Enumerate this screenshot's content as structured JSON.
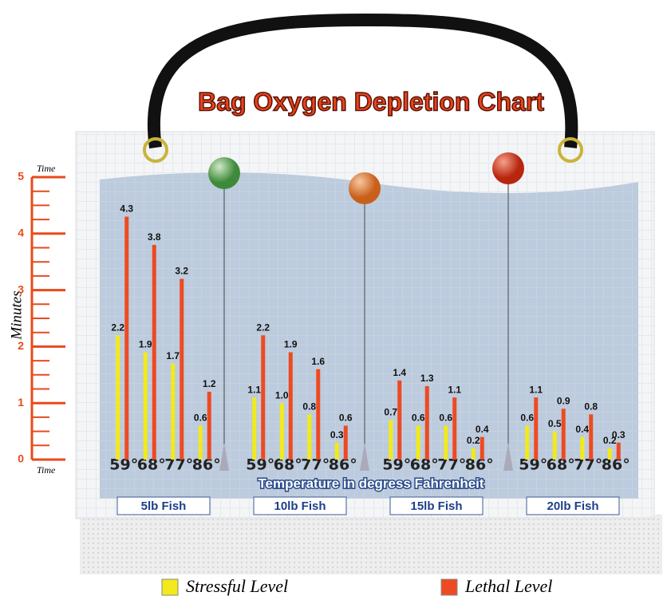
{
  "chart_data": {
    "type": "bar",
    "title": "Bag Oxygen Depletion Chart",
    "ylabel": "Minutes",
    "ylabel_top": "Time",
    "ylabel_bottom": "Time",
    "xlabel": "Temperature in degress Fahrenheit",
    "groups": [
      "5lb Fish",
      "10lb Fish",
      "15lb Fish",
      "20lb Fish"
    ],
    "categories": [
      "59°",
      "68°",
      "77°",
      "86°",
      "59°",
      "68°",
      "77°",
      "86°",
      "59°",
      "68°",
      "77°",
      "86°",
      "59°",
      "68°",
      "77°",
      "86°"
    ],
    "series": [
      {
        "name": "Stressful Level",
        "color": "#f2ea1a",
        "values": [
          2.2,
          1.9,
          1.7,
          0.6,
          1.1,
          1.0,
          0.8,
          0.3,
          0.7,
          0.6,
          0.6,
          0.2,
          0.6,
          0.5,
          0.4,
          0.2
        ],
        "value_labels": [
          "2.2",
          "1.9",
          "1.7",
          "0.6",
          "1.1",
          "1.0",
          "0.8",
          "0.3",
          "0.7",
          "0.6",
          "0.6",
          "0.2",
          "0.6",
          "0.5",
          "0.4",
          "0.2"
        ]
      },
      {
        "name": "Lethal Level",
        "color": "#ee4a22",
        "values": [
          4.3,
          3.8,
          3.2,
          1.2,
          2.2,
          1.9,
          1.6,
          0.6,
          1.4,
          1.3,
          1.1,
          0.4,
          1.1,
          0.9,
          0.8,
          0.3
        ]
      }
    ],
    "ylim": [
      0,
      5
    ],
    "yticks": [
      0,
      1,
      2,
      3,
      4,
      5
    ],
    "yminor_ticks": [
      0.25,
      0.5,
      0.75,
      1.25,
      1.5,
      1.75,
      2.25,
      2.5,
      2.75,
      3.25,
      3.5,
      3.75,
      4.25,
      4.5,
      4.75
    ]
  }
}
